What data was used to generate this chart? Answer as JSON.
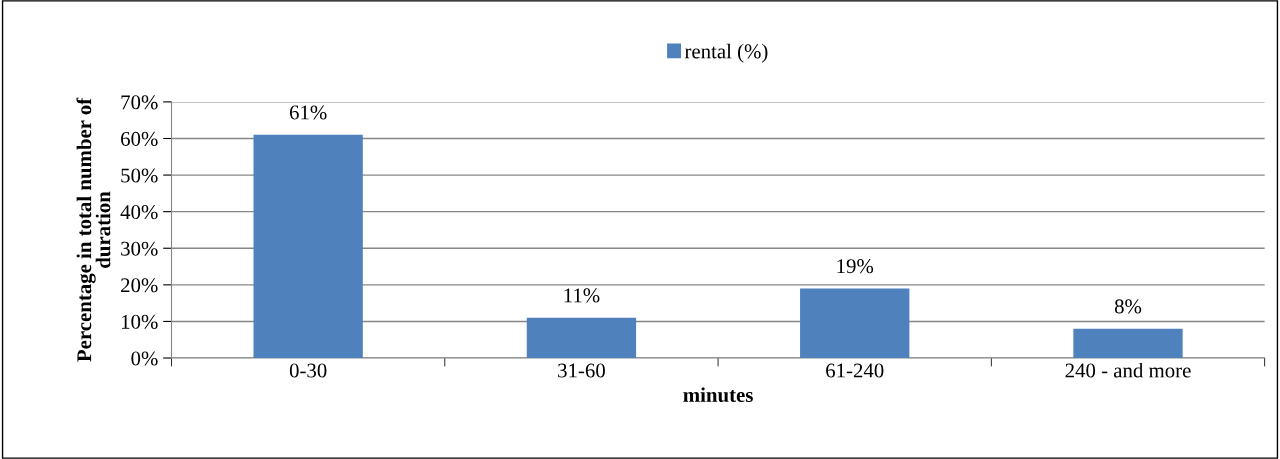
{
  "chart_data": {
    "type": "bar",
    "categories": [
      "0-30",
      "31-60",
      "61-240",
      "240 - and more"
    ],
    "series": [
      {
        "name": "rental (%)",
        "color": "#4f81bd",
        "values": [
          61,
          11,
          19,
          8
        ],
        "value_labels": [
          "61%",
          "11%",
          "19%",
          "8%"
        ]
      }
    ],
    "xlabel": "minutes",
    "ylabel": "Percentage in total number of\nduration",
    "ylim": [
      0,
      70
    ],
    "yticks": [
      {
        "value": 0,
        "label": "0%"
      },
      {
        "value": 10,
        "label": "10%"
      },
      {
        "value": 20,
        "label": "20%"
      },
      {
        "value": 30,
        "label": "30%"
      },
      {
        "value": 40,
        "label": "40%"
      },
      {
        "value": 50,
        "label": "50%"
      },
      {
        "value": 60,
        "label": "60%"
      },
      {
        "value": 70,
        "label": "70%"
      }
    ],
    "grid": "y",
    "legend": "top"
  }
}
